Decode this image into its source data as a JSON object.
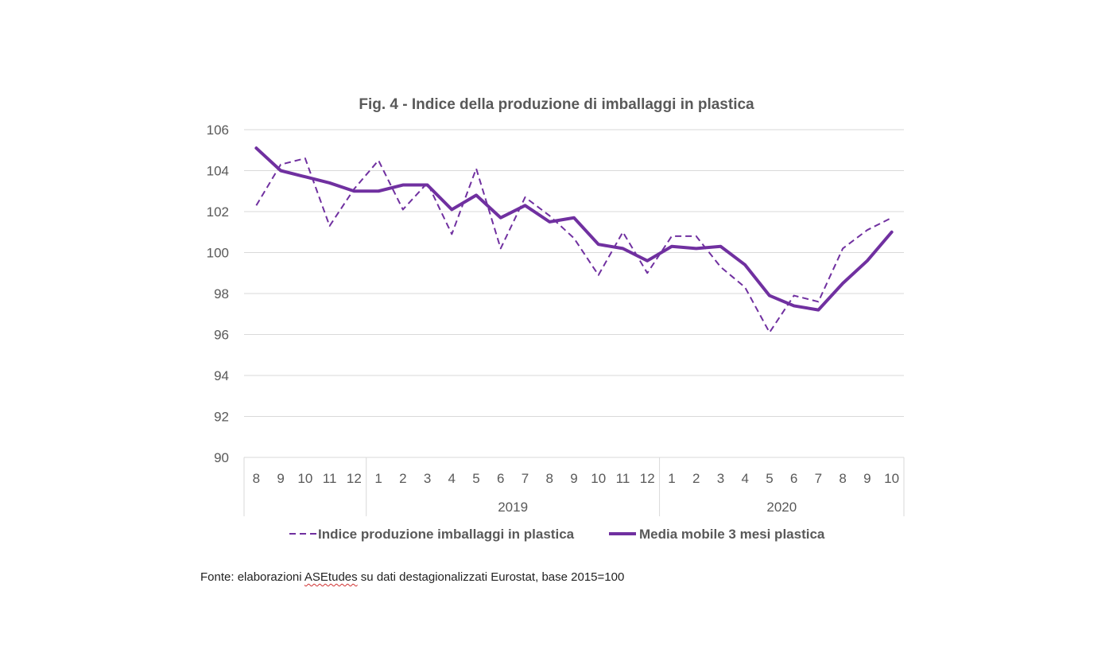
{
  "chart_data": {
    "type": "line",
    "title": "Fig. 4  - Indice della produzione di imballaggi in plastica",
    "categories": [
      "8",
      "9",
      "10",
      "11",
      "12",
      "1",
      "2",
      "3",
      "4",
      "5",
      "6",
      "7",
      "8",
      "9",
      "10",
      "11",
      "12",
      "1",
      "2",
      "3",
      "4",
      "5",
      "6",
      "7",
      "8",
      "9",
      "10"
    ],
    "year_groups": [
      {
        "label": "",
        "start": 0,
        "end": 4
      },
      {
        "label": "2019",
        "start": 5,
        "end": 16
      },
      {
        "label": "2020",
        "start": 17,
        "end": 26
      }
    ],
    "ylim": [
      90,
      106
    ],
    "yticks": [
      "106",
      "104",
      "102",
      "100",
      "98",
      "96",
      "94",
      "92",
      "90"
    ],
    "grid": true,
    "legend_position": "bottom",
    "series": [
      {
        "name": "Indice produzione imballaggi in plastica",
        "style": "dashed",
        "color": "#7030a0",
        "values": [
          102.3,
          104.3,
          104.6,
          101.3,
          103.1,
          104.5,
          102.1,
          103.4,
          100.9,
          104.1,
          100.2,
          102.7,
          101.8,
          100.7,
          98.9,
          101.0,
          99.0,
          100.8,
          100.8,
          99.3,
          98.3,
          96.1,
          97.9,
          97.6,
          100.2,
          101.1,
          101.7
        ]
      },
      {
        "name": "Media mobile 3 mesi plastica",
        "style": "solid",
        "color": "#7030a0",
        "values": [
          105.1,
          104.0,
          103.7,
          103.4,
          103.0,
          103.0,
          103.3,
          103.3,
          102.1,
          102.8,
          101.7,
          102.3,
          101.5,
          101.7,
          100.4,
          100.2,
          99.6,
          100.3,
          100.2,
          100.3,
          99.4,
          97.9,
          97.4,
          97.2,
          98.5,
          99.6,
          101.0
        ]
      }
    ]
  },
  "source": {
    "prefix": "Fonte: elaborazioni ",
    "highlight": "ASEtudes",
    "suffix": " su dati destagionalizzati Eurostat, base 2015=100"
  }
}
